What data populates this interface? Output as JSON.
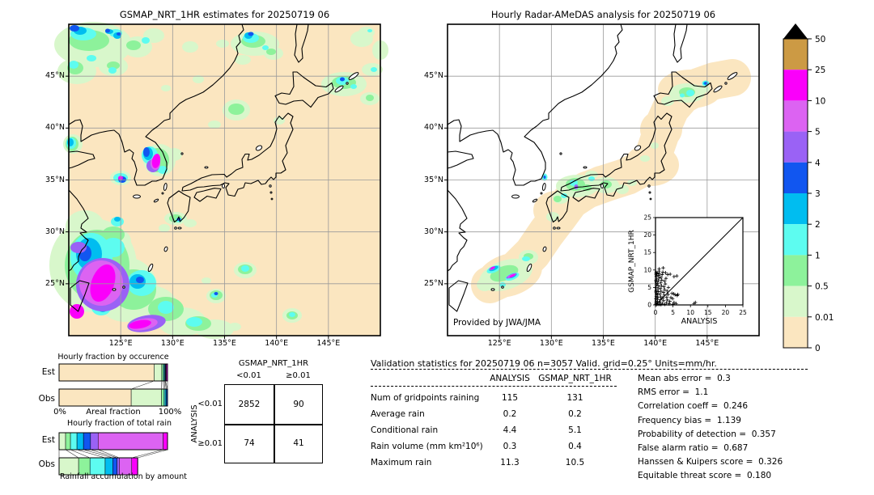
{
  "chart_data": [
    {
      "type": "map",
      "panel": "left",
      "title": "GSMAP_NRT_1HR estimates for 20250719 06",
      "lat_ticks": [
        "45°N",
        "40°N",
        "35°N",
        "30°N",
        "25°N"
      ],
      "lon_ticks": [
        "125°E",
        "130°E",
        "135°E",
        "140°E",
        "145°E"
      ],
      "lon_range": [
        120,
        150
      ],
      "lat_range": [
        20,
        50
      ]
    },
    {
      "type": "map",
      "panel": "right",
      "title": "Hourly Radar-AMeDAS analysis for 20250719 06",
      "provided_by": "Provided by JWA/JMA",
      "lat_ticks": [
        "45°N",
        "40°N",
        "35°N",
        "30°N",
        "25°N"
      ],
      "lon_ticks": [
        "125°E",
        "130°E",
        "135°E",
        "140°E",
        "145°E"
      ],
      "lon_range": [
        120,
        150
      ],
      "lat_range": [
        20,
        50
      ]
    },
    {
      "type": "colorbar",
      "labels": [
        "50",
        "25",
        "10",
        "5",
        "4",
        "3",
        "2",
        "1",
        "0.5",
        "0.01",
        "0"
      ],
      "order_top_to_bottom": [
        "c9",
        "c8",
        "c7",
        "c6",
        "c5",
        "c4",
        "c3",
        "c2",
        "c1",
        "c0"
      ],
      "colors": {
        "c0": "#fbe6c0",
        "c1": "#d8f7cb",
        "c2": "#8df29b",
        "c3": "#5dfcf0",
        "c4": "#00bdf0",
        "c5": "#1156f0",
        "c6": "#9a62f5",
        "c7": "#dc63f2",
        "c8": "#fa00fa",
        "c9": "#cc9a44"
      },
      "overflow_color": "#000000"
    },
    {
      "type": "bar",
      "title": "Hourly fraction by occurence",
      "rows": [
        "Est",
        "Obs"
      ],
      "x0_label": "0%",
      "x_axis_label": "Areal fraction",
      "x1_label": "100%",
      "est_segments": [
        [
          "c0",
          87.6
        ],
        [
          "c1",
          7.0
        ],
        [
          "c2",
          1.4
        ],
        [
          "c3",
          1.0
        ],
        [
          "c4",
          0.6
        ],
        [
          "c5",
          0.5
        ],
        [
          "c6",
          0.4
        ],
        [
          "c7",
          0.5
        ],
        [
          "c8",
          1.0
        ]
      ],
      "obs_segments": [
        [
          "c0",
          66.5
        ],
        [
          "c1",
          28.0
        ],
        [
          "c2",
          2.0
        ],
        [
          "c3",
          1.3
        ],
        [
          "c4",
          1.1
        ],
        [
          "c5",
          1.1
        ]
      ]
    },
    {
      "type": "bar",
      "title": "Hourly fraction of total rain",
      "rows": [
        "Est",
        "Obs"
      ],
      "caption": "Rainfall accumulation by amount",
      "est_segments": [
        [
          "c1",
          6.0
        ],
        [
          "c2",
          4.5
        ],
        [
          "c3",
          6.0
        ],
        [
          "c4",
          6.0
        ],
        [
          "c5",
          6.5
        ],
        [
          "c6",
          7.0
        ],
        [
          "c7",
          60.0
        ],
        [
          "c8",
          4.0
        ]
      ],
      "obs_segments": [
        [
          "c1",
          18.0
        ],
        [
          "c2",
          10.5
        ],
        [
          "c3",
          14.0
        ],
        [
          "c4",
          7.0
        ],
        [
          "c5",
          4.0
        ],
        [
          "c6",
          2.0
        ],
        [
          "c7",
          11.5
        ],
        [
          "c8",
          5.5
        ]
      ]
    },
    {
      "type": "table",
      "name": "contingency",
      "header": "GSMAP_NRT_1HR",
      "col_labels": [
        "<0.01",
        "≥0.01"
      ],
      "row_axis": "ANALYSIS",
      "row_labels": [
        "<0.01",
        "≥0.01"
      ],
      "values": [
        [
          "2852",
          "90"
        ],
        [
          "74",
          "41"
        ]
      ]
    },
    {
      "type": "table",
      "name": "validation",
      "title": "Validation statistics for 20250719 06  n=3057 Valid. grid=0.25° Units=mm/hr.",
      "columns": [
        "ANALYSIS",
        "GSMAP_NRT_1HR"
      ],
      "rows": [
        {
          "label": "Num of gridpoints raining",
          "analysis": "115",
          "gsmap": "131"
        },
        {
          "label": "Average rain",
          "analysis": "0.2",
          "gsmap": "0.2"
        },
        {
          "label": "Conditional rain",
          "analysis": "4.4",
          "gsmap": "5.1"
        },
        {
          "label": "Rain volume (mm km²10⁶)",
          "analysis": "0.3",
          "gsmap": "0.4"
        },
        {
          "label": "Maximum rain",
          "analysis": "11.3",
          "gsmap": "10.5"
        }
      ],
      "stats": [
        {
          "label": "Mean abs error",
          "value": "0.3"
        },
        {
          "label": "RMS error",
          "value": "1.1"
        },
        {
          "label": "Correlation coeff",
          "value": "0.246"
        },
        {
          "label": "Frequency bias",
          "value": "1.139"
        },
        {
          "label": "Probability of detection",
          "value": "0.357"
        },
        {
          "label": "False alarm ratio",
          "value": "0.687"
        },
        {
          "label": "Hanssen & Kuipers score",
          "value": "0.326"
        },
        {
          "label": "Equitable threat score",
          "value": "0.180"
        }
      ]
    },
    {
      "type": "scatter",
      "xlabel": "ANALYSIS",
      "ylabel": "GSMAP_NRT_1HR",
      "xlim": [
        0,
        25
      ],
      "ylim": [
        0,
        25
      ],
      "x_ticks": [
        "0",
        "5",
        "10",
        "15",
        "20",
        "25"
      ],
      "y_ticks": [
        "0",
        "5",
        "10",
        "15",
        "20",
        "25"
      ],
      "diagonal": true,
      "points": [
        [
          0.1,
          0.2
        ],
        [
          0.15,
          0.6
        ],
        [
          0.2,
          1.1
        ],
        [
          0.1,
          1.8
        ],
        [
          0.25,
          2.4
        ],
        [
          0.3,
          3.2
        ],
        [
          0.2,
          4.1
        ],
        [
          0.15,
          5.0
        ],
        [
          0.3,
          5.8
        ],
        [
          0.2,
          6.6
        ],
        [
          0.35,
          7.4
        ],
        [
          0.25,
          8.2
        ],
        [
          0.3,
          8.9
        ],
        [
          0.2,
          9.3
        ],
        [
          0.5,
          0.3
        ],
        [
          0.6,
          0.9
        ],
        [
          0.55,
          1.6
        ],
        [
          0.7,
          2.2
        ],
        [
          0.6,
          3.0
        ],
        [
          0.8,
          3.8
        ],
        [
          0.7,
          4.6
        ],
        [
          0.9,
          5.4
        ],
        [
          0.6,
          6.1
        ],
        [
          0.8,
          6.9
        ],
        [
          1.0,
          7.7
        ],
        [
          0.9,
          8.4
        ],
        [
          1.1,
          9.0
        ],
        [
          1.0,
          9.7
        ],
        [
          1.05,
          10.3
        ],
        [
          1.3,
          0.2
        ],
        [
          1.2,
          0.8
        ],
        [
          1.4,
          1.5
        ],
        [
          1.5,
          2.3
        ],
        [
          1.3,
          3.1
        ],
        [
          1.6,
          3.9
        ],
        [
          1.4,
          4.7
        ],
        [
          1.7,
          5.5
        ],
        [
          1.5,
          6.3
        ],
        [
          1.8,
          7.1
        ],
        [
          1.6,
          7.9
        ],
        [
          1.9,
          8.7
        ],
        [
          2.1,
          9.4
        ],
        [
          2.2,
          10.6
        ],
        [
          2.0,
          0.4
        ],
        [
          2.3,
          1.2
        ],
        [
          2.1,
          2.0
        ],
        [
          2.5,
          2.8
        ],
        [
          2.3,
          3.6
        ],
        [
          2.6,
          4.4
        ],
        [
          2.4,
          5.2
        ],
        [
          2.8,
          6.0
        ],
        [
          2.6,
          6.8
        ],
        [
          3.0,
          7.6
        ],
        [
          2.9,
          9.2
        ],
        [
          3.1,
          0.6
        ],
        [
          3.4,
          1.4
        ],
        [
          3.2,
          2.2
        ],
        [
          3.6,
          3.0
        ],
        [
          3.3,
          4.0
        ],
        [
          3.7,
          5.0
        ],
        [
          3.5,
          8.7
        ],
        [
          4.2,
          8.8
        ],
        [
          3.9,
          0.3
        ],
        [
          4.1,
          1.0
        ],
        [
          4.4,
          2.1
        ],
        [
          4.7,
          3.3
        ],
        [
          4.9,
          1.8
        ],
        [
          5.0,
          0.2
        ],
        [
          5.3,
          0.7
        ],
        [
          5.6,
          2.9
        ],
        [
          5.2,
          3.2
        ],
        [
          6.2,
          2.7
        ],
        [
          6.4,
          3.0
        ],
        [
          5.9,
          0.4
        ],
        [
          6.1,
          8.3
        ],
        [
          5.3,
          8.1
        ],
        [
          11.0,
          0.4
        ],
        [
          11.4,
          0.7
        ],
        [
          0.4,
          0.1
        ],
        [
          0.9,
          0.15
        ],
        [
          1.6,
          0.1
        ],
        [
          2.7,
          0.15
        ],
        [
          0.1,
          3.7
        ],
        [
          0.1,
          7.0
        ],
        [
          0.12,
          8.8
        ],
        [
          0.45,
          9.1
        ]
      ]
    }
  ]
}
